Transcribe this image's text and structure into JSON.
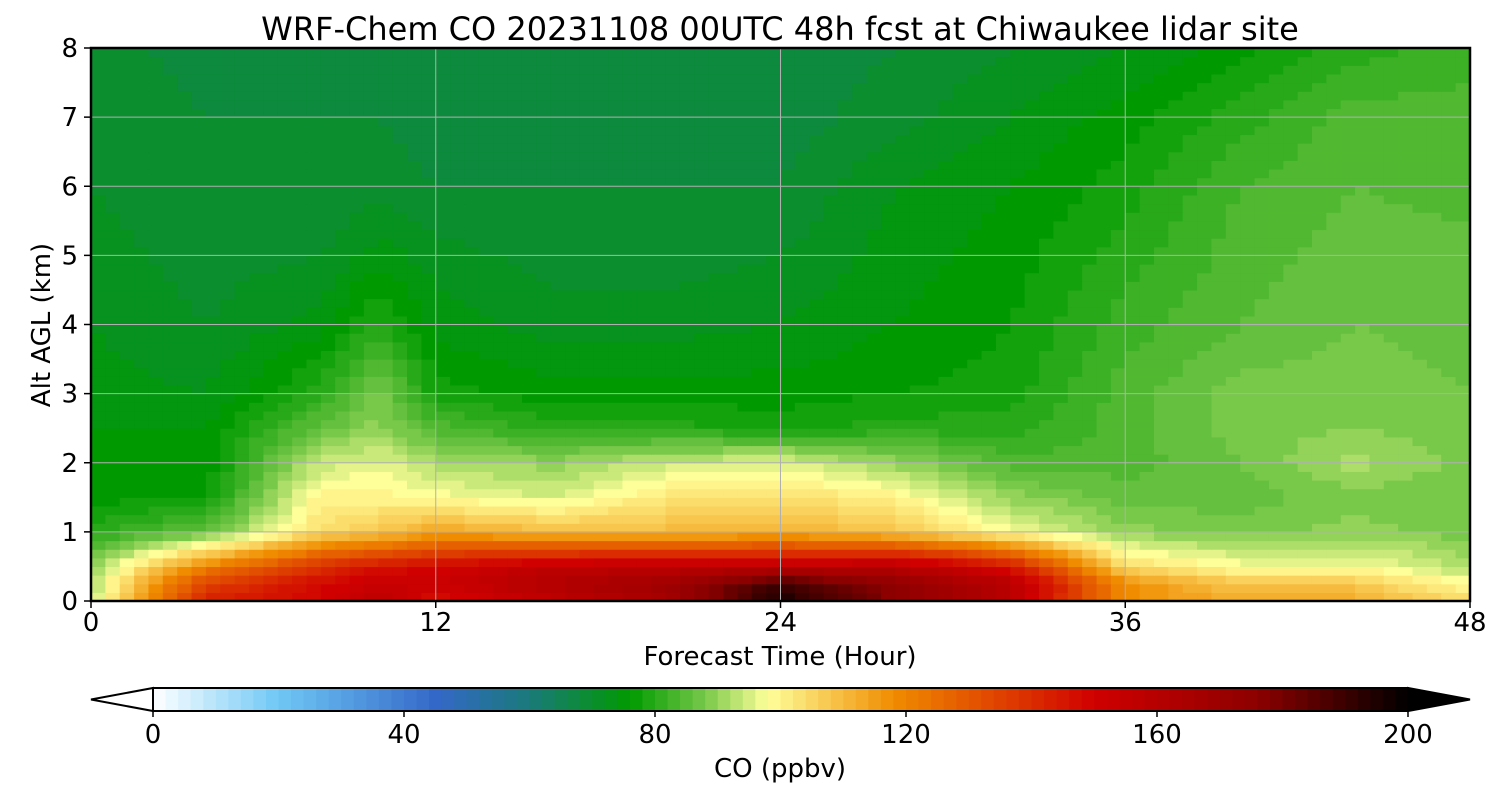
{
  "chart_data": {
    "type": "heatmap",
    "title": "WRF-Chem CO  20231108 00UTC 48h fcst at Chiwaukee lidar site",
    "xlabel": "Forecast Time (Hour)",
    "ylabel": "Alt AGL (km)",
    "xlim": [
      0,
      48
    ],
    "ylim": [
      0,
      8
    ],
    "xticks": [
      "0",
      "12",
      "24",
      "36",
      "48"
    ],
    "yticks": [
      "0",
      "1",
      "2",
      "3",
      "4",
      "5",
      "6",
      "7",
      "8"
    ],
    "grid": true,
    "colorbar": {
      "label": "CO  (ppbv)",
      "range": [
        0,
        200
      ],
      "ticks": [
        "0",
        "40",
        "80",
        "120",
        "160",
        "200"
      ],
      "extend": "both",
      "stops": [
        {
          "v": 0,
          "c": "#ffffff"
        },
        {
          "v": 20,
          "c": "#6fc8f5"
        },
        {
          "v": 45,
          "c": "#3468c8"
        },
        {
          "v": 60,
          "c": "#1a7a7a"
        },
        {
          "v": 76,
          "c": "#009a00"
        },
        {
          "v": 88,
          "c": "#78c84a"
        },
        {
          "v": 98,
          "c": "#ffff9a"
        },
        {
          "v": 118,
          "c": "#f08c00"
        },
        {
          "v": 150,
          "c": "#d00000"
        },
        {
          "v": 176,
          "c": "#8c0000"
        },
        {
          "v": 200,
          "c": "#000000"
        }
      ]
    },
    "x": [
      0,
      4,
      8,
      10,
      12,
      16,
      20,
      24,
      28,
      32,
      36,
      40,
      44,
      48
    ],
    "y": [
      0,
      0.25,
      0.5,
      1,
      1.5,
      2,
      2.5,
      3,
      4,
      5,
      6,
      7,
      8
    ],
    "z": [
      [
        92,
        142,
        150,
        158,
        146,
        156,
        166,
        196,
        176,
        158,
        118,
        112,
        112,
        104
      ],
      [
        92,
        136,
        148,
        154,
        152,
        162,
        168,
        190,
        174,
        160,
        118,
        108,
        108,
        98
      ],
      [
        90,
        120,
        140,
        146,
        150,
        156,
        158,
        158,
        160,
        146,
        104,
        98,
        98,
        92
      ],
      [
        80,
        86,
        104,
        108,
        114,
        110,
        110,
        112,
        108,
        98,
        90,
        88,
        90,
        88
      ],
      [
        76,
        77,
        100,
        100,
        98,
        95,
        102,
        104,
        100,
        90,
        86,
        86,
        88,
        87
      ],
      [
        75,
        75,
        94,
        96,
        92,
        90,
        94,
        96,
        90,
        84,
        84,
        87,
        92,
        88
      ],
      [
        75,
        75,
        86,
        90,
        84,
        80,
        80,
        78,
        80,
        80,
        84,
        88,
        89,
        88
      ],
      [
        74,
        73,
        80,
        88,
        78,
        76,
        76,
        76,
        77,
        78,
        84,
        88,
        88,
        87
      ],
      [
        73,
        71,
        74,
        80,
        74,
        72,
        72,
        73,
        75,
        77,
        82,
        85,
        87,
        86
      ],
      [
        72,
        70,
        71,
        74,
        72,
        70,
        70,
        71,
        74,
        76,
        80,
        84,
        86,
        86
      ],
      [
        71,
        69,
        69,
        70,
        69,
        69,
        69,
        69,
        73,
        75,
        78,
        83,
        85,
        84
      ],
      [
        71,
        69,
        69,
        69,
        68,
        68,
        68,
        68,
        70,
        73,
        76,
        80,
        84,
        84
      ],
      [
        70,
        68,
        68,
        68,
        68,
        68,
        68,
        68,
        69,
        71,
        73,
        76,
        80,
        82
      ]
    ]
  }
}
